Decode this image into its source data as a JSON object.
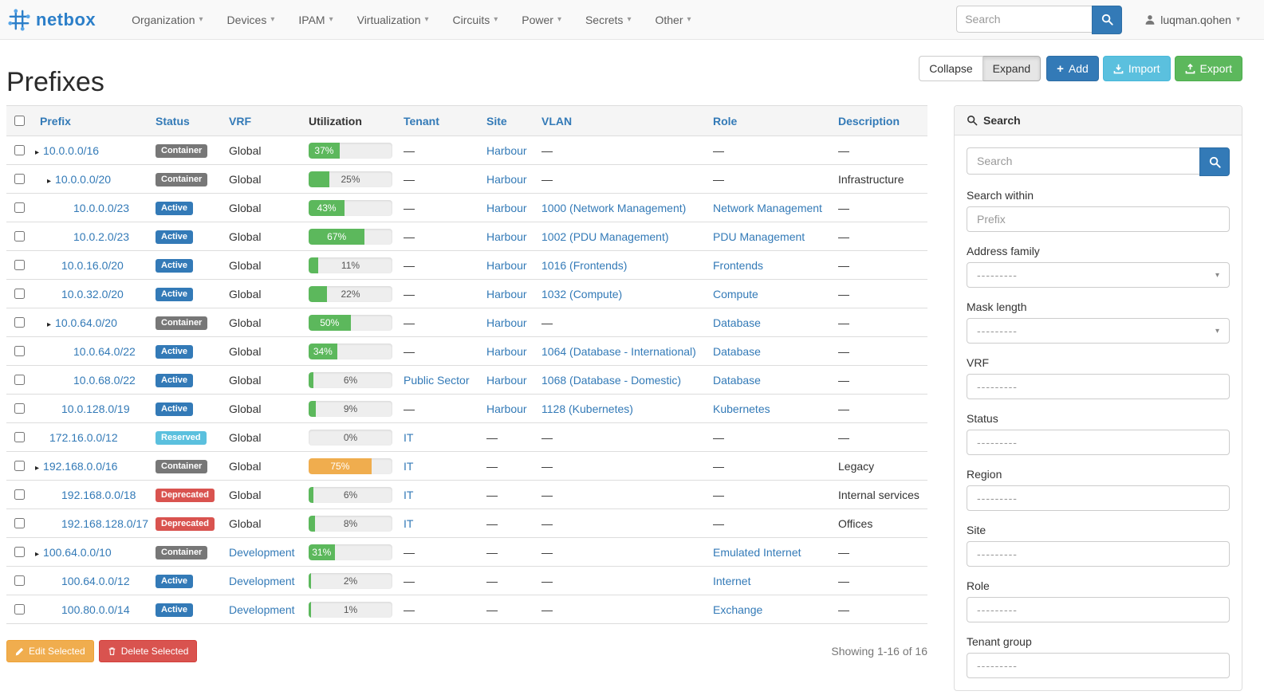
{
  "navbar": {
    "brand": "netbox",
    "menus": [
      "Organization",
      "Devices",
      "IPAM",
      "Virtualization",
      "Circuits",
      "Power",
      "Secrets",
      "Other"
    ],
    "search_placeholder": "Search",
    "user": "luqman.qohen"
  },
  "page": {
    "title": "Prefixes",
    "toolbar": {
      "collapse": "Collapse",
      "expand": "Expand",
      "add": "Add",
      "import": "Import",
      "export": "Export"
    },
    "edit_selected": "Edit Selected",
    "delete_selected": "Delete Selected",
    "showing": "Showing 1-16 of 16"
  },
  "table": {
    "columns": [
      "Prefix",
      "Status",
      "VRF",
      "Utilization",
      "Tenant",
      "Site",
      "VLAN",
      "Role",
      "Description"
    ],
    "sortable": [
      true,
      true,
      true,
      false,
      true,
      true,
      true,
      true,
      true
    ],
    "empty": "—",
    "rows": [
      {
        "prefix": "10.0.0.0/16",
        "depth": 0,
        "caret": true,
        "status": "Container",
        "status_type": "container",
        "vrf": "Global",
        "vrf_link": false,
        "util": 37,
        "bar": "green",
        "tenant": "",
        "site": "Harbour",
        "vlan": "",
        "role": "",
        "description": ""
      },
      {
        "prefix": "10.0.0.0/20",
        "depth": 1,
        "caret": true,
        "status": "Container",
        "status_type": "container",
        "vrf": "Global",
        "vrf_link": false,
        "util": 25,
        "bar": "green",
        "tenant": "",
        "site": "Harbour",
        "vlan": "",
        "role": "",
        "description": "Infrastructure"
      },
      {
        "prefix": "10.0.0.0/23",
        "depth": 2,
        "caret": false,
        "status": "Active",
        "status_type": "active",
        "vrf": "Global",
        "vrf_link": false,
        "util": 43,
        "bar": "green",
        "tenant": "",
        "site": "Harbour",
        "vlan": "1000 (Network Management)",
        "role": "Network Management",
        "description": ""
      },
      {
        "prefix": "10.0.2.0/23",
        "depth": 2,
        "caret": false,
        "status": "Active",
        "status_type": "active",
        "vrf": "Global",
        "vrf_link": false,
        "util": 67,
        "bar": "green",
        "tenant": "",
        "site": "Harbour",
        "vlan": "1002 (PDU Management)",
        "role": "PDU Management",
        "description": ""
      },
      {
        "prefix": "10.0.16.0/20",
        "depth": 1,
        "caret": false,
        "status": "Active",
        "status_type": "active",
        "vrf": "Global",
        "vrf_link": false,
        "util": 11,
        "bar": "green",
        "tenant": "",
        "site": "Harbour",
        "vlan": "1016 (Frontends)",
        "role": "Frontends",
        "description": ""
      },
      {
        "prefix": "10.0.32.0/20",
        "depth": 1,
        "caret": false,
        "status": "Active",
        "status_type": "active",
        "vrf": "Global",
        "vrf_link": false,
        "util": 22,
        "bar": "green",
        "tenant": "",
        "site": "Harbour",
        "vlan": "1032 (Compute)",
        "role": "Compute",
        "description": ""
      },
      {
        "prefix": "10.0.64.0/20",
        "depth": 1,
        "caret": true,
        "status": "Container",
        "status_type": "container",
        "vrf": "Global",
        "vrf_link": false,
        "util": 50,
        "bar": "green",
        "tenant": "",
        "site": "Harbour",
        "vlan": "",
        "role": "Database",
        "description": ""
      },
      {
        "prefix": "10.0.64.0/22",
        "depth": 2,
        "caret": false,
        "status": "Active",
        "status_type": "active",
        "vrf": "Global",
        "vrf_link": false,
        "util": 34,
        "bar": "green",
        "tenant": "",
        "site": "Harbour",
        "vlan": "1064 (Database - International)",
        "role": "Database",
        "description": ""
      },
      {
        "prefix": "10.0.68.0/22",
        "depth": 2,
        "caret": false,
        "status": "Active",
        "status_type": "active",
        "vrf": "Global",
        "vrf_link": false,
        "util": 6,
        "bar": "green",
        "tenant": "Public Sector",
        "site": "Harbour",
        "vlan": "1068 (Database - Domestic)",
        "role": "Database",
        "description": ""
      },
      {
        "prefix": "10.0.128.0/19",
        "depth": 1,
        "caret": false,
        "status": "Active",
        "status_type": "active",
        "vrf": "Global",
        "vrf_link": false,
        "util": 9,
        "bar": "green",
        "tenant": "",
        "site": "Harbour",
        "vlan": "1128 (Kubernetes)",
        "role": "Kubernetes",
        "description": ""
      },
      {
        "prefix": "172.16.0.0/12",
        "depth": 0,
        "caret": false,
        "status": "Reserved",
        "status_type": "reserved",
        "vrf": "Global",
        "vrf_link": false,
        "util": 0,
        "bar": "green",
        "tenant": "IT",
        "site": "",
        "vlan": "",
        "role": "",
        "description": ""
      },
      {
        "prefix": "192.168.0.0/16",
        "depth": 0,
        "caret": true,
        "status": "Container",
        "status_type": "container",
        "vrf": "Global",
        "vrf_link": false,
        "util": 75,
        "bar": "orange",
        "tenant": "IT",
        "site": "",
        "vlan": "",
        "role": "",
        "description": "Legacy"
      },
      {
        "prefix": "192.168.0.0/18",
        "depth": 1,
        "caret": false,
        "status": "Deprecated",
        "status_type": "deprecated",
        "vrf": "Global",
        "vrf_link": false,
        "util": 6,
        "bar": "green",
        "tenant": "IT",
        "site": "",
        "vlan": "",
        "role": "",
        "description": "Internal services"
      },
      {
        "prefix": "192.168.128.0/17",
        "depth": 1,
        "caret": false,
        "status": "Deprecated",
        "status_type": "deprecated",
        "vrf": "Global",
        "vrf_link": false,
        "util": 8,
        "bar": "green",
        "tenant": "IT",
        "site": "",
        "vlan": "",
        "role": "",
        "description": "Offices"
      },
      {
        "prefix": "100.64.0.0/10",
        "depth": 0,
        "caret": true,
        "status": "Container",
        "status_type": "container",
        "vrf": "Development",
        "vrf_link": true,
        "util": 31,
        "bar": "green",
        "tenant": "",
        "site": "",
        "vlan": "",
        "role": "Emulated Internet",
        "description": ""
      },
      {
        "prefix": "100.64.0.0/12",
        "depth": 1,
        "caret": false,
        "status": "Active",
        "status_type": "active",
        "vrf": "Development",
        "vrf_link": true,
        "util": 2,
        "bar": "green",
        "tenant": "",
        "site": "",
        "vlan": "",
        "role": "Internet",
        "description": ""
      },
      {
        "prefix": "100.80.0.0/14",
        "depth": 1,
        "caret": false,
        "status": "Active",
        "status_type": "active",
        "vrf": "Development",
        "vrf_link": true,
        "util": 1,
        "bar": "green",
        "tenant": "",
        "site": "",
        "vlan": "",
        "role": "Exchange",
        "description": ""
      }
    ]
  },
  "sidebar": {
    "title": "Search",
    "search_placeholder": "Search",
    "fields": [
      {
        "label": "Search within",
        "type": "input",
        "placeholder": "Prefix"
      },
      {
        "label": "Address family",
        "type": "select",
        "value": "---------"
      },
      {
        "label": "Mask length",
        "type": "select",
        "value": "---------"
      },
      {
        "label": "VRF",
        "type": "box",
        "value": "---------"
      },
      {
        "label": "Status",
        "type": "box",
        "value": "---------"
      },
      {
        "label": "Region",
        "type": "box",
        "value": "---------"
      },
      {
        "label": "Site",
        "type": "box",
        "value": "---------"
      },
      {
        "label": "Role",
        "type": "box",
        "value": "---------"
      },
      {
        "label": "Tenant group",
        "type": "box",
        "value": "---------"
      }
    ]
  },
  "colors": {
    "primary": "#337ab7",
    "info": "#5bc0de",
    "success": "#5cb85c",
    "warning": "#f0ad4e",
    "danger": "#d9534f",
    "badge_gray": "#777777",
    "bar_green": "#5cb85c",
    "bar_orange": "#f0ad4e"
  }
}
